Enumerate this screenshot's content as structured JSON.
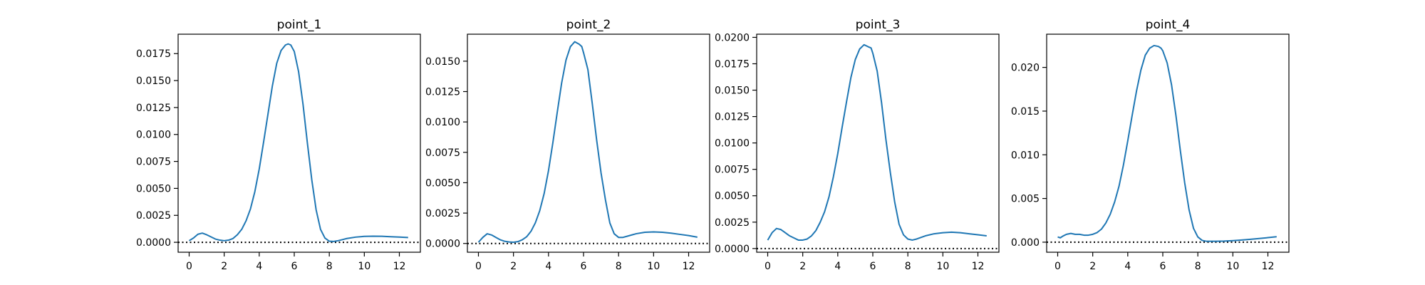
{
  "figure": {
    "line_color": "#1f77b4",
    "zero_line_color": "#000000",
    "background": "#ffffff"
  },
  "chart_data": [
    {
      "type": "line",
      "title": "point_1",
      "xlabel": "",
      "ylabel": "",
      "xlim": [
        -0.63,
        13.2
      ],
      "ylim": [
        -0.00092,
        0.0193
      ],
      "xticks": [
        0,
        2,
        4,
        6,
        8,
        10,
        12
      ],
      "xtick_labels": [
        "0",
        "2",
        "4",
        "6",
        "8",
        "10",
        "12"
      ],
      "yticks": [
        0,
        0.0025,
        0.005,
        0.0075,
        0.01,
        0.0125,
        0.015,
        0.0175
      ],
      "ytick_labels": [
        "0.0000",
        "0.0025",
        "0.0050",
        "0.0075",
        "0.0100",
        "0.0125",
        "0.0150",
        "0.0175"
      ],
      "grid": false,
      "reference_line": {
        "y": 0,
        "style": "dotted"
      },
      "x": [
        0,
        0.25,
        0.5,
        0.75,
        1,
        1.25,
        1.5,
        1.75,
        2,
        2.25,
        2.5,
        2.75,
        3,
        3.25,
        3.5,
        3.75,
        4,
        4.25,
        4.5,
        4.75,
        5,
        5.25,
        5.5,
        5.65,
        5.8,
        6,
        6.25,
        6.5,
        6.75,
        7,
        7.25,
        7.5,
        7.75,
        8,
        8.25,
        8.5,
        8.75,
        9,
        9.5,
        10,
        10.5,
        11,
        11.5,
        12,
        12.5
      ],
      "y": [
        0.00015,
        0.0004,
        0.00075,
        0.00085,
        0.0007,
        0.0005,
        0.0003,
        0.0002,
        0.00015,
        0.0002,
        0.00035,
        0.0007,
        0.0012,
        0.002,
        0.0031,
        0.0047,
        0.0068,
        0.0093,
        0.0119,
        0.0145,
        0.0166,
        0.0178,
        0.0183,
        0.0184,
        0.0183,
        0.0177,
        0.0158,
        0.0128,
        0.0092,
        0.0058,
        0.003,
        0.0012,
        0.0004,
        0.0001,
        8e-05,
        0.00015,
        0.00025,
        0.00035,
        0.00048,
        0.00055,
        0.00057,
        0.00056,
        0.00052,
        0.00048,
        0.00044
      ]
    },
    {
      "type": "line",
      "title": "point_2",
      "xlabel": "",
      "ylabel": "",
      "xlim": [
        -0.63,
        13.2
      ],
      "ylim": [
        -0.00072,
        0.01722
      ],
      "xticks": [
        0,
        2,
        4,
        6,
        8,
        10,
        12
      ],
      "xtick_labels": [
        "0",
        "2",
        "4",
        "6",
        "8",
        "10",
        "12"
      ],
      "yticks": [
        0,
        0.0025,
        0.005,
        0.0075,
        0.01,
        0.0125,
        0.015
      ],
      "ytick_labels": [
        "0.0000",
        "0.0025",
        "0.0050",
        "0.0075",
        "0.0100",
        "0.0125",
        "0.0150"
      ],
      "grid": false,
      "reference_line": {
        "y": 0,
        "style": "dotted"
      },
      "x": [
        0,
        0.25,
        0.5,
        0.75,
        1,
        1.25,
        1.5,
        1.75,
        2,
        2.25,
        2.5,
        2.75,
        3,
        3.25,
        3.5,
        3.75,
        4,
        4.25,
        4.5,
        4.75,
        5,
        5.25,
        5.5,
        5.75,
        5.9,
        6,
        6.25,
        6.5,
        6.75,
        7,
        7.25,
        7.5,
        7.75,
        8,
        8.25,
        8.5,
        9,
        9.5,
        10,
        10.5,
        11,
        11.5,
        12,
        12.5
      ],
      "y": [
        0.0001,
        0.0005,
        0.0008,
        0.0007,
        0.0005,
        0.0003,
        0.00018,
        0.00012,
        0.0001,
        0.00015,
        0.0003,
        0.00055,
        0.001,
        0.0017,
        0.0027,
        0.0041,
        0.006,
        0.0083,
        0.0108,
        0.0132,
        0.0151,
        0.0162,
        0.0166,
        0.0164,
        0.0162,
        0.0157,
        0.0143,
        0.0115,
        0.0085,
        0.0058,
        0.0036,
        0.0017,
        0.0008,
        0.0005,
        0.0005,
        0.0006,
        0.0008,
        0.00092,
        0.00095,
        0.00092,
        0.00085,
        0.00075,
        0.00065,
        0.00052
      ]
    },
    {
      "type": "line",
      "title": "point_3",
      "xlabel": "",
      "ylabel": "",
      "xlim": [
        -0.63,
        13.2
      ],
      "ylim": [
        -0.00035,
        0.0203
      ],
      "xticks": [
        0,
        2,
        4,
        6,
        8,
        10,
        12
      ],
      "xtick_labels": [
        "0",
        "2",
        "4",
        "6",
        "8",
        "10",
        "12"
      ],
      "yticks": [
        0,
        0.0025,
        0.005,
        0.0075,
        0.01,
        0.0125,
        0.015,
        0.0175,
        0.02
      ],
      "ytick_labels": [
        "0.0000",
        "0.0025",
        "0.0050",
        "0.0075",
        "0.0100",
        "0.0125",
        "0.0150",
        "0.0175",
        "0.0200"
      ],
      "grid": false,
      "reference_line": {
        "y": 0,
        "style": "dotted"
      },
      "x": [
        0,
        0.25,
        0.5,
        0.75,
        1,
        1.25,
        1.5,
        1.75,
        2,
        2.25,
        2.5,
        2.75,
        3,
        3.25,
        3.5,
        3.75,
        4,
        4.25,
        4.5,
        4.75,
        5,
        5.25,
        5.5,
        5.75,
        5.9,
        6,
        6.25,
        6.5,
        6.75,
        7,
        7.25,
        7.5,
        7.75,
        8,
        8.25,
        8.5,
        9,
        9.5,
        10,
        10.5,
        11,
        11.5,
        12,
        12.5
      ],
      "y": [
        0.0008,
        0.0015,
        0.0019,
        0.0018,
        0.0015,
        0.0012,
        0.001,
        0.0008,
        0.0008,
        0.0009,
        0.0012,
        0.0017,
        0.0025,
        0.0035,
        0.0049,
        0.0068,
        0.009,
        0.0115,
        0.0139,
        0.0162,
        0.0179,
        0.0189,
        0.0193,
        0.0191,
        0.019,
        0.0185,
        0.0168,
        0.0138,
        0.0103,
        0.0072,
        0.0044,
        0.0023,
        0.0013,
        0.0009,
        0.0008,
        0.0009,
        0.0012,
        0.0014,
        0.0015,
        0.00155,
        0.0015,
        0.0014,
        0.0013,
        0.0012
      ]
    },
    {
      "type": "line",
      "title": "point_4",
      "xlabel": "",
      "ylabel": "",
      "xlim": [
        -0.63,
        13.2
      ],
      "ylim": [
        -0.00115,
        0.0238
      ],
      "xticks": [
        0,
        2,
        4,
        6,
        8,
        10,
        12
      ],
      "xtick_labels": [
        "0",
        "2",
        "4",
        "6",
        "8",
        "10",
        "12"
      ],
      "yticks": [
        0,
        0.005,
        0.01,
        0.015,
        0.02
      ],
      "ytick_labels": [
        "0.000",
        "0.005",
        "0.010",
        "0.015",
        "0.020"
      ],
      "grid": false,
      "reference_line": {
        "y": 0,
        "style": "dotted"
      },
      "x": [
        0,
        0.15,
        0.3,
        0.5,
        0.75,
        1,
        1.25,
        1.5,
        1.75,
        2,
        2.25,
        2.5,
        2.75,
        3,
        3.25,
        3.5,
        3.75,
        4,
        4.25,
        4.5,
        4.75,
        5,
        5.25,
        5.5,
        5.75,
        5.9,
        6,
        6.25,
        6.5,
        6.75,
        7,
        7.25,
        7.5,
        7.75,
        8,
        8.25,
        8.5,
        9,
        9.5,
        10,
        10.5,
        11,
        11.5,
        12,
        12.5
      ],
      "y": [
        0.0006,
        0.0005,
        0.0007,
        0.0009,
        0.001,
        0.0009,
        0.0009,
        0.0008,
        0.0008,
        0.0009,
        0.0011,
        0.0015,
        0.0022,
        0.0032,
        0.0046,
        0.0064,
        0.0088,
        0.0116,
        0.0145,
        0.0173,
        0.0197,
        0.0214,
        0.0222,
        0.0225,
        0.0224,
        0.0222,
        0.0219,
        0.0205,
        0.018,
        0.0145,
        0.0105,
        0.0068,
        0.0037,
        0.0016,
        0.0006,
        0.0002,
        0.0001,
        0.0001,
        0.00012,
        0.00018,
        0.00025,
        0.00033,
        0.00042,
        0.00052,
        0.00062
      ]
    }
  ]
}
